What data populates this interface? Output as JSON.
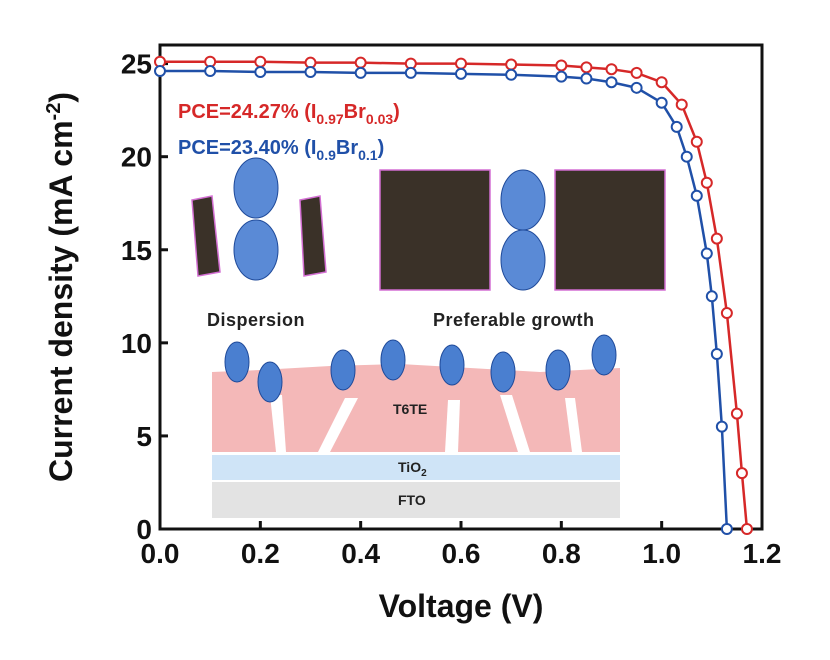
{
  "chart_data": {
    "type": "line",
    "xlabel": "Voltage (V)",
    "ylabel": "Current density (mA cm",
    "ylabel_sup": "-2",
    "ylabel_tail": ")",
    "xlim": [
      0.0,
      1.2
    ],
    "ylim": [
      0,
      26
    ],
    "xticks": [
      "0.0",
      "0.2",
      "0.4",
      "0.6",
      "0.8",
      "1.0",
      "1.2"
    ],
    "yticks": [
      "0",
      "5",
      "10",
      "15",
      "20",
      "25"
    ],
    "grid": false,
    "legend_position": "top-left",
    "series": [
      {
        "name": "PCE=24.27% (I0.97Br0.03)",
        "label_main": "PCE=24.27% (I",
        "label_sub1": "0.97",
        "label_mid": "Br",
        "label_sub2": "0.03",
        "label_end": ")",
        "color": "#d62828",
        "x": [
          0.0,
          0.1,
          0.2,
          0.3,
          0.4,
          0.5,
          0.6,
          0.7,
          0.8,
          0.85,
          0.9,
          0.95,
          1.0,
          1.04,
          1.07,
          1.09,
          1.11,
          1.13,
          1.15,
          1.16,
          1.17
        ],
        "y": [
          25.1,
          25.1,
          25.1,
          25.05,
          25.05,
          25.0,
          25.0,
          24.95,
          24.9,
          24.8,
          24.7,
          24.5,
          24.0,
          22.8,
          20.8,
          18.6,
          15.6,
          11.6,
          6.2,
          3.0,
          0.0
        ]
      },
      {
        "name": "PCE=23.40% (I0.9Br0.1)",
        "label_main": "PCE=23.40% (I",
        "label_sub1": "0.9",
        "label_mid": "Br",
        "label_sub2": "0.1",
        "label_end": ")",
        "color": "#2050a8",
        "x": [
          0.0,
          0.1,
          0.2,
          0.3,
          0.4,
          0.5,
          0.6,
          0.7,
          0.8,
          0.85,
          0.9,
          0.95,
          1.0,
          1.03,
          1.05,
          1.07,
          1.09,
          1.1,
          1.11,
          1.12,
          1.13
        ],
        "y": [
          24.6,
          24.6,
          24.55,
          24.55,
          24.5,
          24.5,
          24.45,
          24.4,
          24.3,
          24.2,
          24.0,
          23.7,
          22.9,
          21.6,
          20.0,
          17.9,
          14.8,
          12.5,
          9.4,
          5.5,
          0.0
        ]
      }
    ]
  },
  "inset": {
    "label_left": "Dispersion",
    "label_right": "Preferable growth",
    "layer_top": "T6TE",
    "layer_mid": "TiO",
    "layer_mid_sub": "2",
    "layer_bottom": "FTO"
  }
}
